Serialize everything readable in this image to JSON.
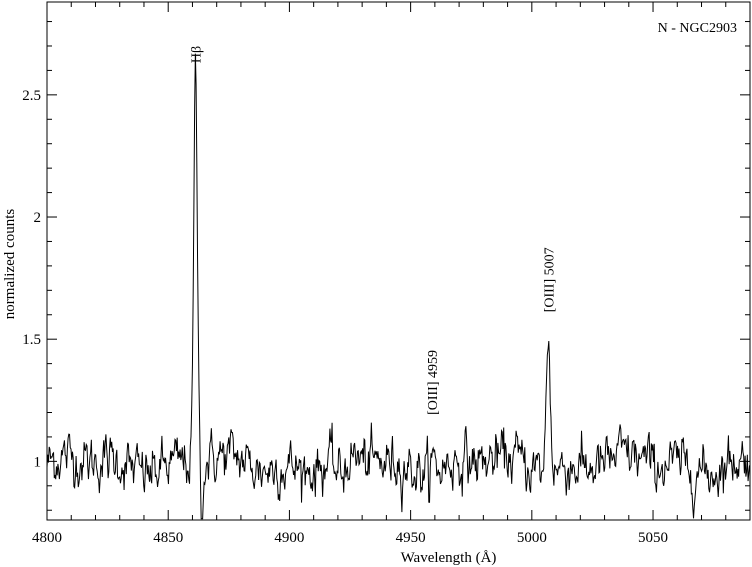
{
  "chart_data": {
    "type": "line",
    "title": "",
    "legend_text": "N - NGC2903",
    "legend_placement": "top-right",
    "xlabel": "Wavelength  (Å)",
    "ylabel": "normalized counts",
    "xlim": [
      4800,
      5090
    ],
    "ylim": [
      0.76,
      2.88
    ],
    "grid": false,
    "x_ticks": [
      {
        "value": 4800,
        "label": "4800"
      },
      {
        "value": 4850,
        "label": "4850"
      },
      {
        "value": 4900,
        "label": "4900"
      },
      {
        "value": 4950,
        "label": "4950"
      },
      {
        "value": 5000,
        "label": "5000"
      },
      {
        "value": 5050,
        "label": "5050"
      }
    ],
    "y_ticks": [
      {
        "value": 1,
        "label": "1"
      },
      {
        "value": 1.5,
        "label": "1.5"
      },
      {
        "value": 2,
        "label": "2"
      },
      {
        "value": 2.5,
        "label": "2.5"
      }
    ],
    "line_color": "#000000",
    "series": [
      {
        "continuum": 0.99,
        "noise_amplitude": 0.045,
        "emission_lines": [
          {
            "label": "Hβ",
            "center": 4861.3,
            "peak": 2.58,
            "sigma": 0.75
          },
          {
            "label": "[OIII] 4959",
            "center": 4958.9,
            "peak": 1.04,
            "sigma": 0.9
          },
          {
            "label": "[OIII] 5007",
            "center": 5006.8,
            "peak": 1.55,
            "sigma": 0.8
          }
        ],
        "absorption_dips": [
          {
            "center": 4864.0,
            "depth": 0.2,
            "sigma": 0.5
          },
          {
            "center": 4921.0,
            "depth": 0.08,
            "sigma": 2.0
          }
        ]
      }
    ],
    "annotations": [
      {
        "text": "Hβ",
        "x": 4861.3,
        "y": 2.63,
        "rotation": -90
      },
      {
        "text": "[OIII] 4959",
        "x": 4958.9,
        "y": 1.19,
        "rotation": -90
      },
      {
        "text": "[OIII] 5007",
        "x": 5006.8,
        "y": 1.61,
        "rotation": -90
      }
    ]
  }
}
